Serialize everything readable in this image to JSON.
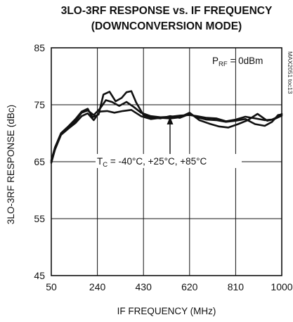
{
  "chart_data": {
    "type": "line",
    "title": "3LO-3RF RESPONSE vs. IF FREQUENCY",
    "subtitle": "(DOWNCONVERSION MODE)",
    "xlabel": "IF FREQUENCY (MHz)",
    "ylabel": "3LO-3RF RESPONSE (dBc)",
    "xlim": [
      50,
      1000
    ],
    "ylim": [
      45,
      85
    ],
    "x_ticks": [
      "50",
      "240",
      "430",
      "620",
      "810",
      "1000"
    ],
    "y_ticks": [
      "85",
      "75",
      "65",
      "55",
      "45"
    ],
    "grid": true,
    "annotations": {
      "prf": {
        "main": "P",
        "sub": "RF",
        "rest": " = 0dBm"
      },
      "tc": {
        "main": "T",
        "sub": "C",
        "rest": " = -40°C, +25°C, +85°C"
      },
      "code": "MAX2051 toc13"
    },
    "series": [
      {
        "x": [
          50,
          65,
          90,
          120,
          150,
          175,
          200,
          220,
          245,
          265,
          290,
          315,
          340,
          360,
          380,
          400,
          430,
          460,
          500,
          540,
          580,
          620,
          650,
          690,
          730,
          770,
          810,
          850,
          890,
          930,
          960,
          985,
          1000
        ],
        "y": [
          65.2,
          67.5,
          70.0,
          71.2,
          72.5,
          73.8,
          74.3,
          72.8,
          73.3,
          76.8,
          77.3,
          75.6,
          76.2,
          77.2,
          77.4,
          75.4,
          73.2,
          72.8,
          72.6,
          73.0,
          72.7,
          73.4,
          72.8,
          72.4,
          72.3,
          72.0,
          72.2,
          72.5,
          71.6,
          71.3,
          72.0,
          73.2,
          73.3
        ]
      },
      {
        "x": [
          50,
          65,
          90,
          120,
          150,
          175,
          200,
          225,
          250,
          275,
          300,
          330,
          360,
          390,
          420,
          460,
          500,
          540,
          580,
          620,
          650,
          690,
          730,
          770,
          810,
          850,
          890,
          930,
          960,
          985,
          1000
        ],
        "y": [
          65.0,
          67.3,
          69.9,
          71.0,
          72.2,
          73.6,
          74.0,
          73.2,
          74.3,
          75.8,
          75.5,
          74.8,
          75.5,
          74.6,
          73.6,
          73.0,
          72.8,
          72.9,
          73.1,
          73.2,
          73.0,
          72.7,
          72.6,
          72.1,
          72.4,
          72.9,
          72.6,
          72.3,
          72.4,
          72.9,
          73.4
        ]
      },
      {
        "x": [
          50,
          65,
          90,
          120,
          150,
          175,
          200,
          225,
          250,
          280,
          310,
          345,
          380,
          420,
          460,
          500,
          540,
          580,
          620,
          660,
          700,
          740,
          780,
          820,
          860,
          900,
          940,
          970,
          1000
        ],
        "y": [
          64.8,
          67.1,
          69.7,
          70.8,
          71.8,
          73.0,
          73.5,
          72.3,
          73.8,
          73.9,
          73.6,
          73.9,
          74.1,
          73.0,
          72.5,
          72.7,
          72.6,
          72.8,
          73.6,
          72.3,
          71.7,
          71.2,
          71.0,
          71.6,
          72.3,
          73.4,
          72.2,
          72.5,
          73.1
        ]
      }
    ]
  }
}
